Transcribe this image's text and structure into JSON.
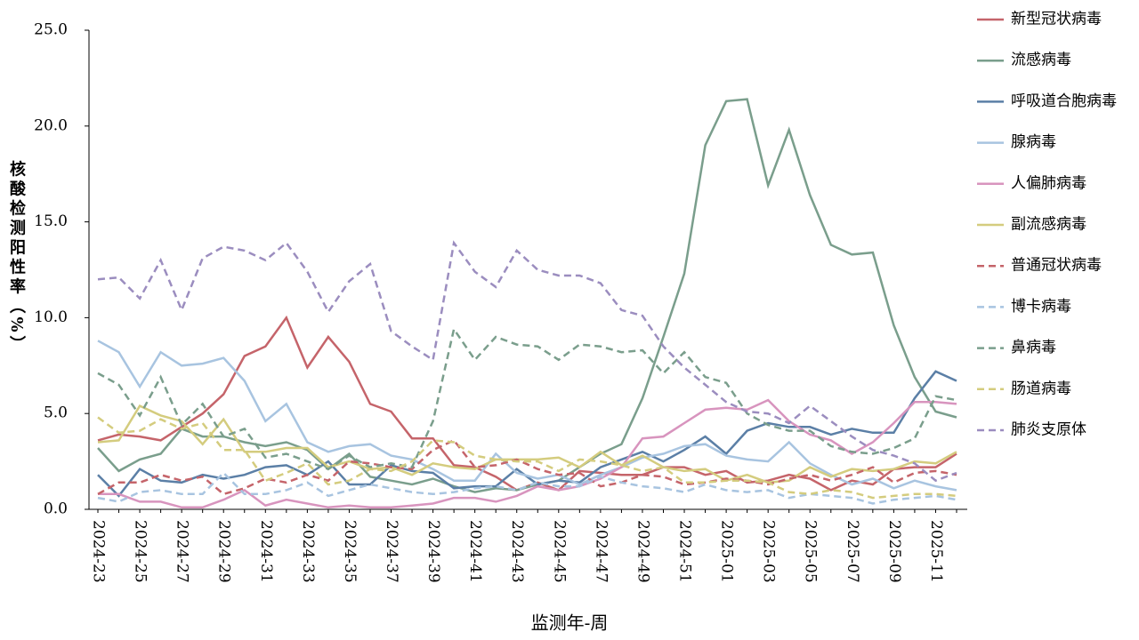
{
  "chart_data": {
    "type": "line",
    "xlabel": "监测年-周",
    "ylabel": "核酸检测阳性率（%）",
    "categories": [
      "2024-23",
      null,
      "2024-25",
      null,
      "2024-27",
      null,
      "2024-29",
      null,
      "2024-31",
      null,
      "2024-33",
      null,
      "2024-35",
      null,
      "2024-37",
      null,
      "2024-39",
      null,
      "2024-41",
      null,
      "2024-43",
      null,
      "2024-45",
      null,
      "2024-47",
      null,
      "2024-49",
      null,
      "2024-51",
      null,
      "2025-01",
      null,
      "2025-03",
      null,
      "2025-05",
      null,
      "2025-07",
      null,
      "2025-09",
      null,
      "2025-11",
      null
    ],
    "ylim": [
      0,
      25
    ],
    "yticks": [
      {
        "value": 0,
        "label": "0.0"
      },
      {
        "value": 5,
        "label": "5.0"
      },
      {
        "value": 10,
        "label": "10.0"
      },
      {
        "value": 15,
        "label": "15.0"
      },
      {
        "value": 20,
        "label": "20.0"
      },
      {
        "value": 25,
        "label": "25.0"
      }
    ],
    "legend": "right",
    "series": [
      {
        "name": "新型冠状病毒",
        "color": "#c5646a",
        "dashed": false,
        "values": [
          3.6,
          3.9,
          3.8,
          3.6,
          4.3,
          5.0,
          6.0,
          8.0,
          8.5,
          10.0,
          7.4,
          9.0,
          7.7,
          5.5,
          5.1,
          3.7,
          3.7,
          2.3,
          2.2,
          1.7,
          1.0,
          1.4,
          1.0,
          2.0,
          1.9,
          1.8,
          1.8,
          2.2,
          2.2,
          1.8,
          2.0,
          1.4,
          1.5,
          1.8,
          1.6,
          1.0,
          1.5,
          1.3,
          2.1,
          2.2,
          2.2,
          2.9
        ]
      },
      {
        "name": "流感病毒",
        "color": "#7a9e8c",
        "dashed": false,
        "values": [
          3.2,
          2.0,
          2.6,
          2.9,
          4.2,
          3.8,
          3.8,
          3.5,
          3.3,
          3.5,
          3.1,
          2.1,
          2.9,
          1.7,
          1.5,
          1.3,
          1.6,
          1.2,
          0.9,
          1.1,
          1.0,
          1.3,
          1.5,
          2.2,
          2.9,
          3.4,
          5.8,
          9.0,
          12.3,
          19.0,
          21.3,
          21.4,
          16.9,
          19.8,
          16.4,
          13.8,
          13.3,
          13.4,
          9.6,
          6.9,
          5.1,
          4.8
        ]
      },
      {
        "name": "呼吸道合胞病毒",
        "color": "#5b7fa6",
        "dashed": false,
        "values": [
          1.8,
          0.7,
          2.1,
          1.5,
          1.4,
          1.8,
          1.6,
          1.8,
          2.2,
          2.3,
          1.8,
          2.5,
          1.3,
          1.3,
          2.3,
          2.0,
          1.9,
          1.1,
          1.2,
          1.2,
          2.1,
          1.3,
          1.5,
          1.4,
          2.2,
          2.6,
          3.0,
          2.5,
          3.1,
          3.8,
          2.9,
          4.1,
          4.5,
          4.3,
          4.3,
          3.9,
          4.2,
          4.0,
          4.0,
          5.8,
          7.2,
          6.7
        ]
      },
      {
        "name": "腺病毒",
        "color": "#a8c4e0",
        "dashed": false,
        "values": [
          8.8,
          8.2,
          6.4,
          8.2,
          7.5,
          7.6,
          7.9,
          6.7,
          4.6,
          5.5,
          3.5,
          3.0,
          3.3,
          3.4,
          2.8,
          2.6,
          2.1,
          1.5,
          1.5,
          2.9,
          1.9,
          1.6,
          1.8,
          1.3,
          1.8,
          2.2,
          2.7,
          2.9,
          3.3,
          3.4,
          2.8,
          2.6,
          2.5,
          3.5,
          2.4,
          1.8,
          1.3,
          1.6,
          1.1,
          1.5,
          1.2,
          1.0
        ]
      },
      {
        "name": "人偏肺病毒",
        "color": "#d894be",
        "dashed": false,
        "values": [
          0.8,
          0.8,
          0.4,
          0.4,
          0.1,
          0.1,
          0.5,
          1.0,
          0.2,
          0.5,
          0.3,
          0.1,
          0.2,
          0.1,
          0.1,
          0.2,
          0.3,
          0.6,
          0.6,
          0.4,
          0.7,
          1.2,
          1.0,
          1.2,
          1.6,
          2.2,
          3.7,
          3.8,
          4.5,
          5.2,
          5.3,
          5.2,
          5.7,
          4.6,
          3.9,
          3.6,
          2.9,
          3.5,
          4.5,
          5.6,
          5.6,
          5.5
        ]
      },
      {
        "name": "副流感病毒",
        "color": "#d4cc7e",
        "dashed": false,
        "values": [
          3.5,
          3.6,
          5.4,
          4.9,
          4.6,
          3.4,
          4.7,
          3.0,
          3.0,
          3.2,
          3.2,
          2.2,
          2.5,
          2.1,
          2.2,
          1.8,
          2.4,
          2.2,
          2.1,
          2.6,
          2.6,
          2.6,
          2.7,
          2.2,
          3.0,
          2.3,
          2.8,
          2.2,
          2.0,
          2.1,
          1.5,
          1.8,
          1.4,
          1.5,
          2.2,
          1.7,
          2.1,
          2.0,
          2.1,
          2.5,
          2.4,
          3.0
        ]
      },
      {
        "name": "普通冠状病毒",
        "color": "#c5646a",
        "dashed": true,
        "values": [
          0.8,
          1.4,
          1.4,
          1.8,
          1.5,
          1.7,
          0.8,
          1.1,
          1.6,
          1.4,
          1.8,
          1.5,
          2.5,
          2.4,
          2.2,
          2.1,
          3.1,
          3.6,
          2.2,
          2.3,
          2.6,
          2.1,
          1.8,
          1.9,
          1.2,
          1.4,
          1.8,
          1.7,
          1.3,
          1.4,
          1.6,
          1.5,
          1.3,
          1.6,
          1.8,
          1.5,
          1.8,
          2.2,
          1.4,
          1.9,
          2.0,
          1.8
        ]
      },
      {
        "name": "博卡病毒",
        "color": "#a8c4e0",
        "dashed": true,
        "values": [
          0.6,
          0.4,
          0.9,
          1.0,
          0.8,
          0.8,
          1.9,
          0.8,
          0.8,
          1.0,
          1.4,
          0.7,
          1.0,
          1.3,
          1.1,
          0.9,
          0.8,
          0.9,
          1.1,
          1.2,
          1.0,
          1.4,
          1.2,
          1.2,
          1.7,
          1.4,
          1.2,
          1.1,
          0.9,
          1.3,
          1.0,
          0.9,
          1.0,
          0.6,
          0.8,
          0.7,
          0.6,
          0.3,
          0.5,
          0.6,
          0.7,
          0.5
        ]
      },
      {
        "name": "鼻病毒",
        "color": "#7a9e8c",
        "dashed": true,
        "values": [
          7.1,
          6.5,
          4.9,
          6.9,
          4.4,
          5.5,
          3.8,
          4.2,
          2.7,
          2.9,
          2.5,
          2.1,
          2.8,
          2.2,
          2.4,
          2.2,
          4.6,
          9.4,
          7.8,
          9.0,
          8.6,
          8.5,
          7.8,
          8.6,
          8.5,
          8.2,
          8.3,
          7.1,
          8.2,
          6.9,
          6.6,
          5.0,
          4.4,
          4.1,
          4.1,
          3.3,
          3.0,
          2.9,
          3.2,
          3.7,
          5.9,
          5.7
        ]
      },
      {
        "name": "肠道病毒",
        "color": "#d4cc7e",
        "dashed": true,
        "values": [
          4.8,
          4.0,
          4.1,
          4.7,
          4.2,
          4.5,
          3.1,
          3.1,
          1.5,
          1.9,
          2.4,
          1.3,
          1.5,
          2.1,
          2.0,
          2.5,
          3.6,
          3.5,
          2.8,
          2.6,
          2.5,
          2.5,
          2.0,
          2.6,
          2.5,
          2.3,
          2.0,
          2.2,
          1.4,
          1.4,
          1.5,
          1.5,
          1.4,
          0.9,
          0.8,
          1.0,
          0.9,
          0.6,
          0.7,
          0.8,
          0.8,
          0.7
        ]
      },
      {
        "name": "肺炎支原体",
        "color": "#9b8dbf",
        "dashed": true,
        "values": [
          12.0,
          12.1,
          11.0,
          13.0,
          10.4,
          13.1,
          13.7,
          13.5,
          13.0,
          13.9,
          12.4,
          10.3,
          11.9,
          12.8,
          9.3,
          8.5,
          7.8,
          13.9,
          12.4,
          11.6,
          13.5,
          12.5,
          12.2,
          12.2,
          11.8,
          10.4,
          10.1,
          8.5,
          7.4,
          6.5,
          5.6,
          5.1,
          5.0,
          4.5,
          5.4,
          4.6,
          3.8,
          3.1,
          2.8,
          2.4,
          1.5,
          1.9
        ]
      }
    ]
  }
}
